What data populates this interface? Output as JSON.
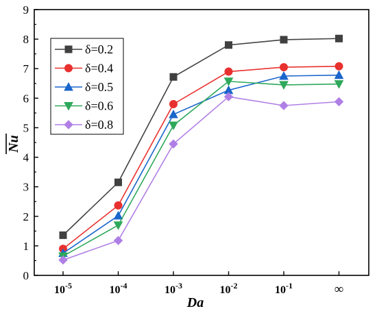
{
  "chart_data": {
    "type": "line",
    "categories": [
      "10-5",
      "10-4",
      "10-3",
      "10-2",
      "10-1",
      "∞"
    ],
    "category_labels": [
      {
        "base": "10",
        "exp": "-5"
      },
      {
        "base": "10",
        "exp": "-4"
      },
      {
        "base": "10",
        "exp": "-3"
      },
      {
        "base": "10",
        "exp": "-2"
      },
      {
        "base": "10",
        "exp": "-1"
      },
      {
        "base": "∞",
        "exp": ""
      }
    ],
    "xlabel": "Da",
    "ylabel": "Nu",
    "ylabel_overline": true,
    "ylim": [
      0,
      9
    ],
    "yticks": [
      0,
      1,
      2,
      3,
      4,
      5,
      6,
      7,
      8,
      9
    ],
    "legend_position": "top-left",
    "grid": false,
    "series": [
      {
        "name": "δ=0.2",
        "color": "#404040",
        "marker": "square",
        "values": [
          1.36,
          3.15,
          6.72,
          7.8,
          7.98,
          8.02
        ]
      },
      {
        "name": "δ=0.4",
        "color": "#e8312f",
        "marker": "circle",
        "values": [
          0.9,
          2.37,
          5.8,
          6.9,
          7.05,
          7.08
        ]
      },
      {
        "name": "δ=0.5",
        "color": "#1a66cc",
        "marker": "triangle-up",
        "values": [
          0.75,
          2.02,
          5.45,
          6.27,
          6.75,
          6.78
        ]
      },
      {
        "name": "δ=0.6",
        "color": "#2ea85a",
        "marker": "triangle-down",
        "values": [
          0.65,
          1.7,
          5.08,
          6.57,
          6.45,
          6.48
        ]
      },
      {
        "name": "δ=0.8",
        "color": "#b07fe6",
        "marker": "diamond",
        "values": [
          0.52,
          1.18,
          4.45,
          6.05,
          5.75,
          5.88
        ]
      }
    ]
  }
}
